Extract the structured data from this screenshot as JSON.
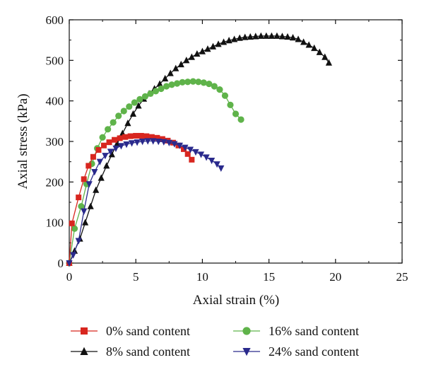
{
  "chart_data": {
    "type": "line",
    "xlabel": "Axial strain (%)",
    "ylabel": "Axial stress (kPa)",
    "xlim": [
      0,
      25
    ],
    "ylim": [
      0,
      600
    ],
    "xticks": [
      0,
      5,
      10,
      15,
      20,
      25
    ],
    "yticks": [
      0,
      100,
      200,
      300,
      400,
      500,
      600
    ],
    "xtick_labels": [
      "0",
      "5",
      "10",
      "15",
      "20",
      "25"
    ],
    "ytick_labels": [
      "0",
      "100",
      "200",
      "300",
      "400",
      "500",
      "600"
    ],
    "grid": false,
    "legend_position": "bottom",
    "series": [
      {
        "name": "0% sand content",
        "color": "#d8261f",
        "marker": "square",
        "x": [
          0,
          0.2,
          0.7,
          1.1,
          1.45,
          1.8,
          2.2,
          2.6,
          3.0,
          3.4,
          3.8,
          4.2,
          4.6,
          5.0,
          5.4,
          5.8,
          6.2,
          6.6,
          7.0,
          7.4,
          7.8,
          8.2,
          8.6,
          8.9,
          9.2
        ],
        "y": [
          0,
          98,
          162,
          207,
          240,
          262,
          279,
          290,
          298,
          304,
          308,
          311,
          313,
          314,
          314,
          313,
          311,
          309,
          306,
          302,
          297,
          290,
          281,
          269,
          255
        ]
      },
      {
        "name": "8% sand content",
        "color": "#111111",
        "marker": "triangle-up",
        "x": [
          0,
          0.4,
          0.8,
          1.2,
          1.6,
          2.0,
          2.4,
          2.8,
          3.2,
          3.6,
          4.0,
          4.4,
          4.8,
          5.2,
          5.6,
          6.0,
          6.4,
          6.8,
          7.2,
          7.6,
          8.0,
          8.4,
          8.8,
          9.2,
          9.6,
          10.0,
          10.4,
          10.8,
          11.2,
          11.6,
          12.0,
          12.4,
          12.8,
          13.2,
          13.6,
          14.0,
          14.4,
          14.8,
          15.2,
          15.6,
          16.0,
          16.4,
          16.8,
          17.2,
          17.6,
          18.0,
          18.4,
          18.8,
          19.2,
          19.5
        ],
        "y": [
          0,
          30,
          60,
          100,
          140,
          180,
          210,
          240,
          268,
          295,
          320,
          345,
          368,
          388,
          405,
          418,
          430,
          442,
          455,
          468,
          480,
          490,
          500,
          508,
          516,
          522,
          528,
          534,
          540,
          545,
          549,
          552,
          555,
          557,
          558,
          559,
          560,
          560,
          560,
          560,
          559,
          558,
          556,
          552,
          545,
          538,
          530,
          520,
          508,
          494
        ]
      },
      {
        "name": "16% sand content",
        "color": "#5fb34a",
        "marker": "circle",
        "x": [
          0,
          0.4,
          0.9,
          1.3,
          1.7,
          2.1,
          2.5,
          2.9,
          3.3,
          3.7,
          4.1,
          4.5,
          4.9,
          5.3,
          5.7,
          6.1,
          6.5,
          6.9,
          7.3,
          7.7,
          8.1,
          8.5,
          8.9,
          9.3,
          9.7,
          10.1,
          10.5,
          10.9,
          11.3,
          11.7,
          12.1,
          12.5,
          12.9
        ],
        "y": [
          0,
          85,
          140,
          195,
          245,
          283,
          310,
          330,
          347,
          363,
          375,
          386,
          396,
          404,
          411,
          418,
          424,
          430,
          436,
          440,
          443,
          446,
          447,
          448,
          447,
          445,
          442,
          436,
          428,
          413,
          390,
          368,
          354
        ]
      },
      {
        "name": "24% sand content",
        "color": "#2a2a8c",
        "marker": "triangle-down",
        "x": [
          0,
          0.3,
          0.7,
          1.1,
          1.5,
          1.9,
          2.3,
          2.7,
          3.1,
          3.5,
          3.9,
          4.3,
          4.7,
          5.1,
          5.5,
          5.9,
          6.3,
          6.7,
          7.1,
          7.5,
          7.9,
          8.3,
          8.7,
          9.1,
          9.5,
          9.9,
          10.3,
          10.7,
          11.1,
          11.4
        ],
        "y": [
          0,
          20,
          55,
          128,
          195,
          225,
          250,
          265,
          275,
          283,
          289,
          293,
          296,
          298,
          300,
          301,
          301,
          300,
          299,
          297,
          294,
          290,
          285,
          280,
          274,
          268,
          261,
          253,
          244,
          234
        ]
      }
    ]
  }
}
